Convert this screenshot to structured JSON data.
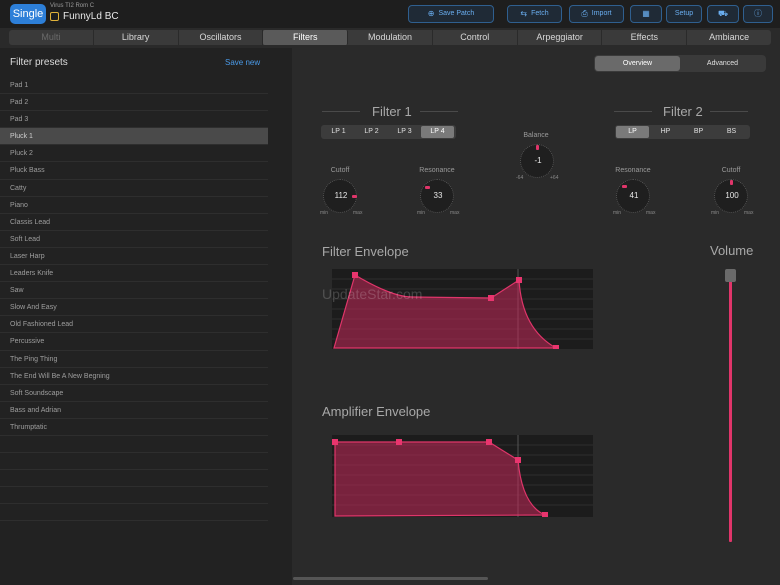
{
  "topbar": {
    "mode_button": "Single",
    "device": "Virus TI2 Rom C",
    "patch_name": "FunnyLd BC",
    "buttons": {
      "save_patch": "Save Patch",
      "fetch": "Fetch",
      "import": "Import",
      "setup": "Setup"
    }
  },
  "tabs": [
    "Multi",
    "Library",
    "Oscillators",
    "Filters",
    "Modulation",
    "Control",
    "Arpeggiator",
    "Effects",
    "Ambiance"
  ],
  "active_tab": "Filters",
  "left": {
    "title": "Filter presets",
    "save_new": "Save new",
    "presets": [
      "Pad 1",
      "Pad 2",
      "Pad 3",
      "Pluck 1",
      "Pluck 2",
      "Pluck Bass",
      "Catty",
      "Piano",
      "Classis Lead",
      "Soft Lead",
      "Laser Harp",
      "Leaders Knife",
      "Saw",
      "Slow And Easy",
      "Old Fashioned Lead",
      "Percussive",
      "The Ping Thing",
      "The End Will Be A New Begning",
      "Soft Soundscape",
      "Bass and Adrian",
      "Thrumptatic"
    ],
    "selected": "Pluck 1"
  },
  "view": {
    "overview": "Overview",
    "advanced": "Advanced",
    "active": "Overview"
  },
  "filter1": {
    "title": "Filter 1",
    "modes": [
      "LP 1",
      "LP 2",
      "LP 3",
      "LP 4"
    ],
    "active_mode": "LP 4",
    "cutoff": {
      "label": "Cutoff",
      "value": "112"
    },
    "resonance": {
      "label": "Resonance",
      "value": "33"
    }
  },
  "balance": {
    "label": "Balance",
    "value": "-1",
    "min": "-64",
    "max": "+64"
  },
  "filter2": {
    "title": "Filter 2",
    "modes": [
      "LP",
      "HP",
      "BP",
      "BS"
    ],
    "active_mode": "LP",
    "cutoff": {
      "label": "Cutoff",
      "value": "100"
    },
    "resonance": {
      "label": "Resonance",
      "value": "41"
    }
  },
  "knob_min": "min",
  "knob_max": "max",
  "filter_envelope": {
    "title": "Filter Envelope"
  },
  "amplifier_envelope": {
    "title": "Amplifier Envelope"
  },
  "volume": {
    "title": "Volume"
  },
  "watermark": "UpdateStar.com",
  "colors": {
    "accent": "#e0356a",
    "blue": "#2d7fd8",
    "panel": "#222222"
  }
}
